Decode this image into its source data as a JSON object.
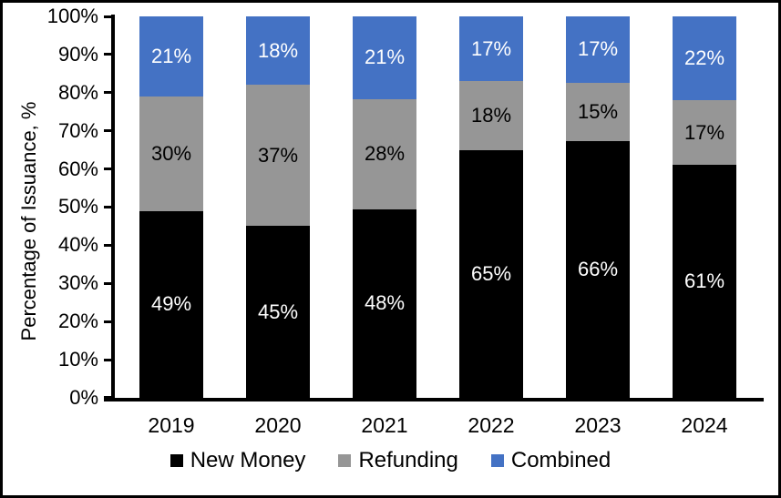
{
  "chart_data": {
    "type": "bar",
    "stacked": true,
    "percent_stacked": true,
    "title": "",
    "xlabel": "",
    "ylabel": "Percentage of Issuance, %",
    "categories": [
      "2019",
      "2020",
      "2021",
      "2022",
      "2023",
      "2024"
    ],
    "series": [
      {
        "name": "New Money",
        "color": "#000000",
        "label_color": "#ffffff",
        "values": [
          49,
          45,
          48,
          65,
          66,
          61
        ]
      },
      {
        "name": "Refunding",
        "color": "#969696",
        "label_color": "#000000",
        "values": [
          30,
          37,
          28,
          18,
          15,
          17
        ]
      },
      {
        "name": "Combined",
        "color": "#4472c4",
        "label_color": "#ffffff",
        "values": [
          21,
          18,
          21,
          17,
          17,
          22
        ]
      }
    ],
    "y_ticks": [
      "0%",
      "10%",
      "20%",
      "30%",
      "40%",
      "50%",
      "60%",
      "70%",
      "80%",
      "90%",
      "100%"
    ],
    "ylim": [
      0,
      100
    ],
    "value_label_suffix": "%",
    "grid": false,
    "legend_position": "bottom",
    "background_color": "#ffffff",
    "border_color": "#000000",
    "axis_color": "#000000"
  }
}
